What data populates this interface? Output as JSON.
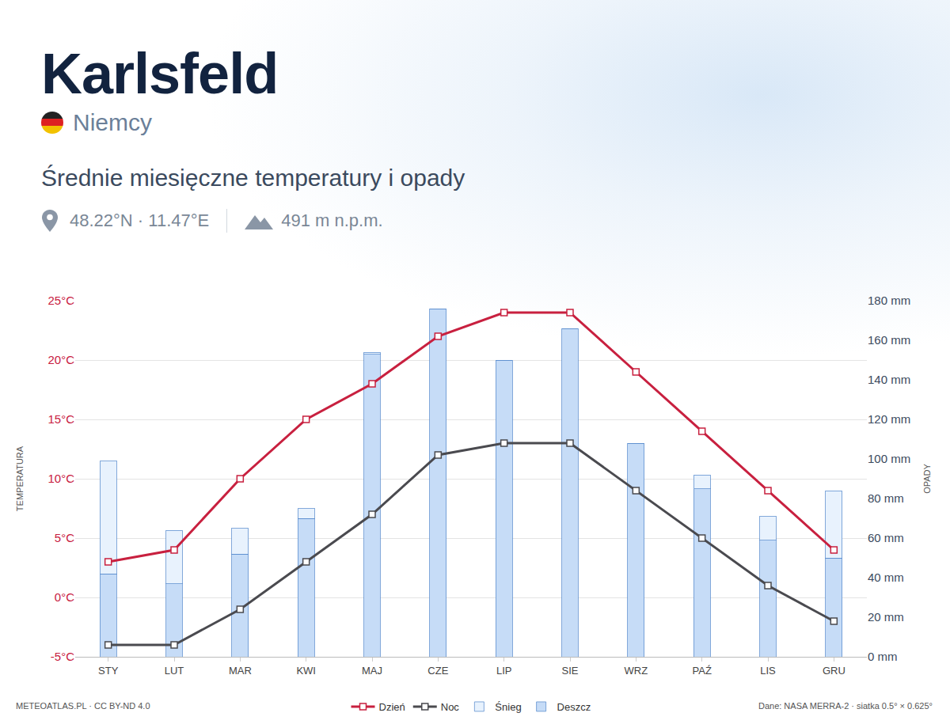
{
  "chart_data": {
    "type": "combo",
    "title": "Karlsfeld",
    "country": "Niemcy",
    "subtitle": "Średnie miesięczne temperatury i opady",
    "location": "48.22°N · 11.47°E",
    "elevation": "491 m n.p.m.",
    "credit": "METEOATLAS.PL · CC BY-ND 4.0",
    "source": "Dane: NASA MERRA-2 · siatka 0.5° × 0.625°",
    "y_label": "TEMPERATURA",
    "y2_label": "OPADY",
    "categories": [
      "STY",
      "LUT",
      "MAR",
      "KWI",
      "MAJ",
      "CZE",
      "LIP",
      "SIE",
      "WRZ",
      "PAŹ",
      "LIS",
      "GRU"
    ],
    "series": [
      {
        "name": "Dzień",
        "type": "line",
        "color": "#c8203f",
        "marker": "square",
        "values": [
          3,
          4,
          10,
          15,
          18,
          22,
          24,
          24,
          19,
          14,
          9,
          4
        ]
      },
      {
        "name": "Noc",
        "type": "line",
        "color": "#4a4a4f",
        "marker": "square",
        "values": [
          -4,
          -4,
          -1,
          3,
          7,
          12,
          13,
          13,
          9,
          5,
          1,
          -2
        ]
      },
      {
        "name": "Śnieg",
        "type": "bar",
        "axis": "y2",
        "color": "#e8f2fd",
        "values": [
          57,
          27,
          13,
          5,
          1,
          0,
          0,
          0,
          0,
          7,
          12,
          34
        ]
      },
      {
        "name": "Deszcz",
        "type": "bar",
        "axis": "y2",
        "color": "#c6dcf7",
        "values": [
          42,
          37,
          52,
          70,
          153,
          176,
          150,
          166,
          108,
          85,
          59,
          50
        ]
      }
    ],
    "stacked": true,
    "grid": true,
    "legend": "bottom",
    "ylim": [
      -5,
      25
    ],
    "yticks": [
      {
        "value": -5,
        "label": "-5°C"
      },
      {
        "value": 0,
        "label": "0°C"
      },
      {
        "value": 5,
        "label": "5°C"
      },
      {
        "value": 10,
        "label": "10°C"
      },
      {
        "value": 15,
        "label": "15°C"
      },
      {
        "value": 20,
        "label": "20°C"
      },
      {
        "value": 25,
        "label": "25°C"
      }
    ],
    "y2lim": [
      0,
      180
    ],
    "y2ticks": [
      {
        "value": 0,
        "label": "0 mm"
      },
      {
        "value": 20,
        "label": "20 mm"
      },
      {
        "value": 40,
        "label": "40 mm"
      },
      {
        "value": 60,
        "label": "60 mm"
      },
      {
        "value": 80,
        "label": "80 mm"
      },
      {
        "value": 100,
        "label": "100 mm"
      },
      {
        "value": 120,
        "label": "120 mm"
      },
      {
        "value": 140,
        "label": "140 mm"
      },
      {
        "value": 160,
        "label": "160 mm"
      },
      {
        "value": 180,
        "label": "180 mm"
      }
    ]
  }
}
